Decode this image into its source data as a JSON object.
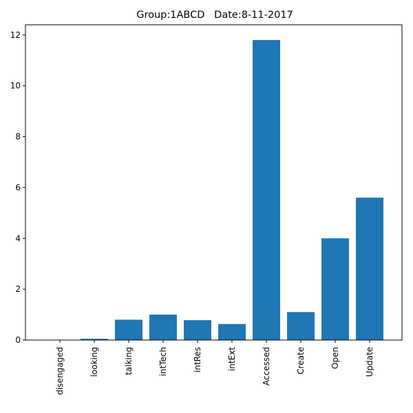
{
  "chart_data": {
    "type": "bar",
    "title": "Group:1ABCD   Date:8-11-2017",
    "xlabel": "",
    "ylabel": "",
    "categories": [
      "disengaged",
      "looking",
      "talking",
      "intTech",
      "intRes",
      "intExt",
      "Accessed",
      "Create",
      "Open",
      "Update"
    ],
    "values": [
      0.0,
      0.05,
      0.8,
      1.0,
      0.78,
      0.63,
      11.8,
      1.1,
      4.0,
      5.6
    ],
    "ylim": [
      0,
      12.4
    ],
    "yticks": [
      0,
      2,
      4,
      6,
      8,
      10,
      12
    ],
    "ytick_labels": [
      "0",
      "2",
      "4",
      "6",
      "8",
      "10",
      "12"
    ],
    "bar_color": "#1f77b4",
    "grid": false,
    "legend": "none"
  }
}
